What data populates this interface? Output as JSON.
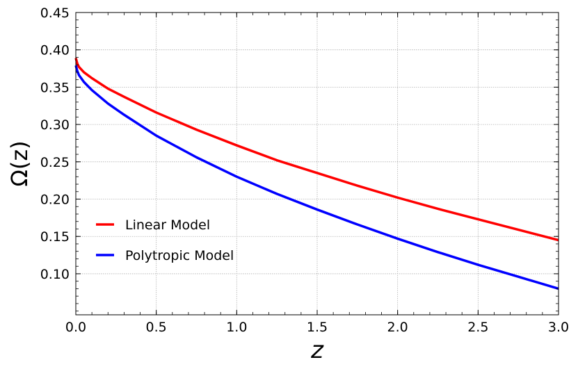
{
  "chart_data": {
    "type": "line",
    "title": "",
    "xlabel": "z",
    "ylabel": "Ω(z)",
    "xlim": [
      0,
      3.0
    ],
    "ylim": [
      0.045,
      0.45
    ],
    "xticks": [
      "0.0",
      "0.5",
      "1.0",
      "1.5",
      "2.0",
      "2.5",
      "3.0"
    ],
    "xtick_values": [
      0,
      0.5,
      1.0,
      1.5,
      2.0,
      2.5,
      3.0
    ],
    "yticks": [
      "0.10",
      "0.15",
      "0.20",
      "0.25",
      "0.30",
      "0.35",
      "0.40",
      "0.45"
    ],
    "ytick_values": [
      0.1,
      0.15,
      0.2,
      0.25,
      0.3,
      0.35,
      0.4,
      0.45
    ],
    "grid": true,
    "legend_position": "lower-left",
    "series": [
      {
        "name": "Linear Model",
        "color": "#ff0000",
        "x": [
          0,
          0.01,
          0.02,
          0.05,
          0.1,
          0.2,
          0.3,
          0.5,
          0.75,
          1.0,
          1.25,
          1.5,
          1.75,
          2.0,
          2.25,
          2.5,
          2.75,
          3.0
        ],
        "y": [
          0.389,
          0.381,
          0.377,
          0.37,
          0.362,
          0.348,
          0.337,
          0.316,
          0.293,
          0.272,
          0.252,
          0.235,
          0.218,
          0.202,
          0.187,
          0.173,
          0.159,
          0.145
        ]
      },
      {
        "name": "Polytropic Model",
        "color": "#0000ff",
        "x": [
          0,
          0.01,
          0.02,
          0.05,
          0.1,
          0.2,
          0.3,
          0.5,
          0.75,
          1.0,
          1.25,
          1.5,
          1.75,
          2.0,
          2.25,
          2.5,
          2.75,
          3.0
        ],
        "y": [
          0.379,
          0.371,
          0.366,
          0.357,
          0.346,
          0.328,
          0.313,
          0.285,
          0.256,
          0.23,
          0.207,
          0.186,
          0.166,
          0.147,
          0.129,
          0.112,
          0.096,
          0.08
        ]
      }
    ]
  }
}
